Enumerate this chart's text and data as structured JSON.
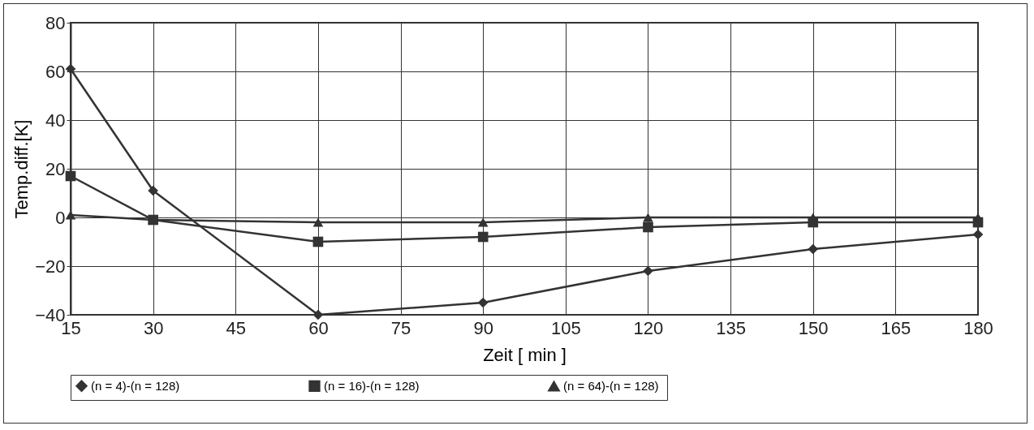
{
  "chart_data": {
    "type": "line",
    "xlabel": "Zeit [ min ]",
    "ylabel": "Temp.diff.[K]",
    "xlim": [
      15,
      180
    ],
    "xticks": [
      15,
      30,
      45,
      60,
      75,
      90,
      105,
      120,
      135,
      150,
      165,
      180
    ],
    "ylim": [
      -40,
      80
    ],
    "yticks": [
      -40,
      -20,
      0,
      20,
      40,
      60,
      80
    ],
    "grid": true,
    "legend": "bottom",
    "x": [
      15,
      30,
      60,
      90,
      120,
      150,
      180
    ],
    "series": [
      {
        "name": "(n =  4)-(n = 128)",
        "color": "#333333",
        "marker": "diamond",
        "values": [
          61,
          11,
          -40,
          -35,
          -22,
          -13,
          -7
        ]
      },
      {
        "name": "(n =  16)-(n = 128)",
        "color": "#333333",
        "marker": "square",
        "values": [
          17,
          -1,
          -10,
          -8,
          -4,
          -2,
          -2
        ]
      },
      {
        "name": "(n =  64)-(n = 128)",
        "color": "#333333",
        "marker": "triangle",
        "values": [
          1,
          -1,
          -2,
          -2,
          0,
          0,
          0
        ]
      }
    ]
  }
}
